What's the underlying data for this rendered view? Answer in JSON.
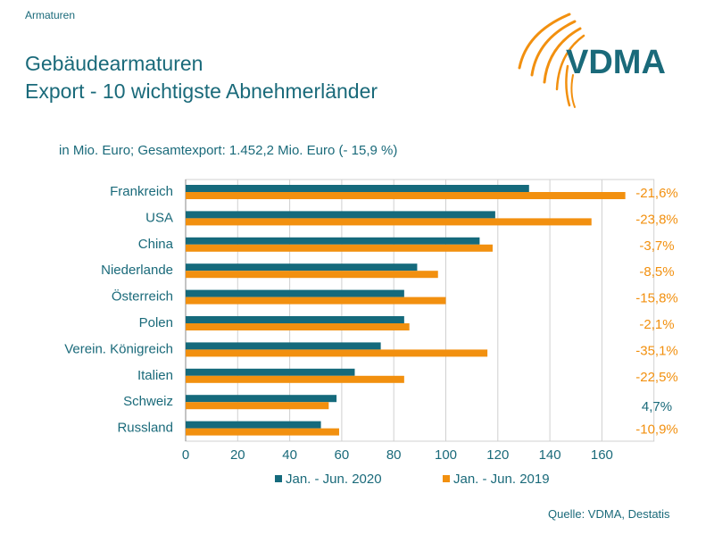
{
  "header": {
    "tag": "Armaturen",
    "title_line1": "Gebäudearmaturen",
    "title_line2": "Export - 10 wichtigste Abnehmerländer",
    "subtitle": "in Mio. Euro; Gesamtexport: 1.452,2 Mio. Euro (- 15,9 %)"
  },
  "logo": {
    "text": "VDMA",
    "color": "#1a6a7a",
    "accent": "#f2900f"
  },
  "source": "Quelle: VDMA, Destatis",
  "colors": {
    "series2020": "#156a7c",
    "series2019": "#f2900f",
    "text": "#1a6a7a",
    "grid": "#d0d0d0"
  },
  "chart_data": {
    "type": "bar",
    "orientation": "horizontal",
    "categories": [
      "Frankreich",
      "USA",
      "China",
      "Niederlande",
      "Österreich",
      "Polen",
      "Verein. Königreich",
      "Italien",
      "Schweiz",
      "Russland"
    ],
    "series": [
      {
        "name": "Jan. - Jun. 2020",
        "values": [
          132,
          119,
          113,
          89,
          84,
          84,
          75,
          65,
          58,
          52
        ]
      },
      {
        "name": "Jan. - Jun. 2019",
        "values": [
          169,
          156,
          118,
          97,
          100,
          86,
          116,
          84,
          55,
          59
        ]
      }
    ],
    "change_labels": [
      "-21,6%",
      "-23,8%",
      "-3,7%",
      "-8,5%",
      "-15,8%",
      "-2,1%",
      "-35,1%",
      "-22,5%",
      "4,7%",
      "-10,9%"
    ],
    "change_label_colors": [
      "#f2900f",
      "#f2900f",
      "#f2900f",
      "#f2900f",
      "#f2900f",
      "#f2900f",
      "#f2900f",
      "#f2900f",
      "#1a6a7a",
      "#f2900f"
    ],
    "xlim": [
      0,
      180
    ],
    "xticks": [
      0,
      20,
      40,
      60,
      80,
      100,
      120,
      140,
      160
    ],
    "grid": true,
    "legend_position": "bottom"
  }
}
